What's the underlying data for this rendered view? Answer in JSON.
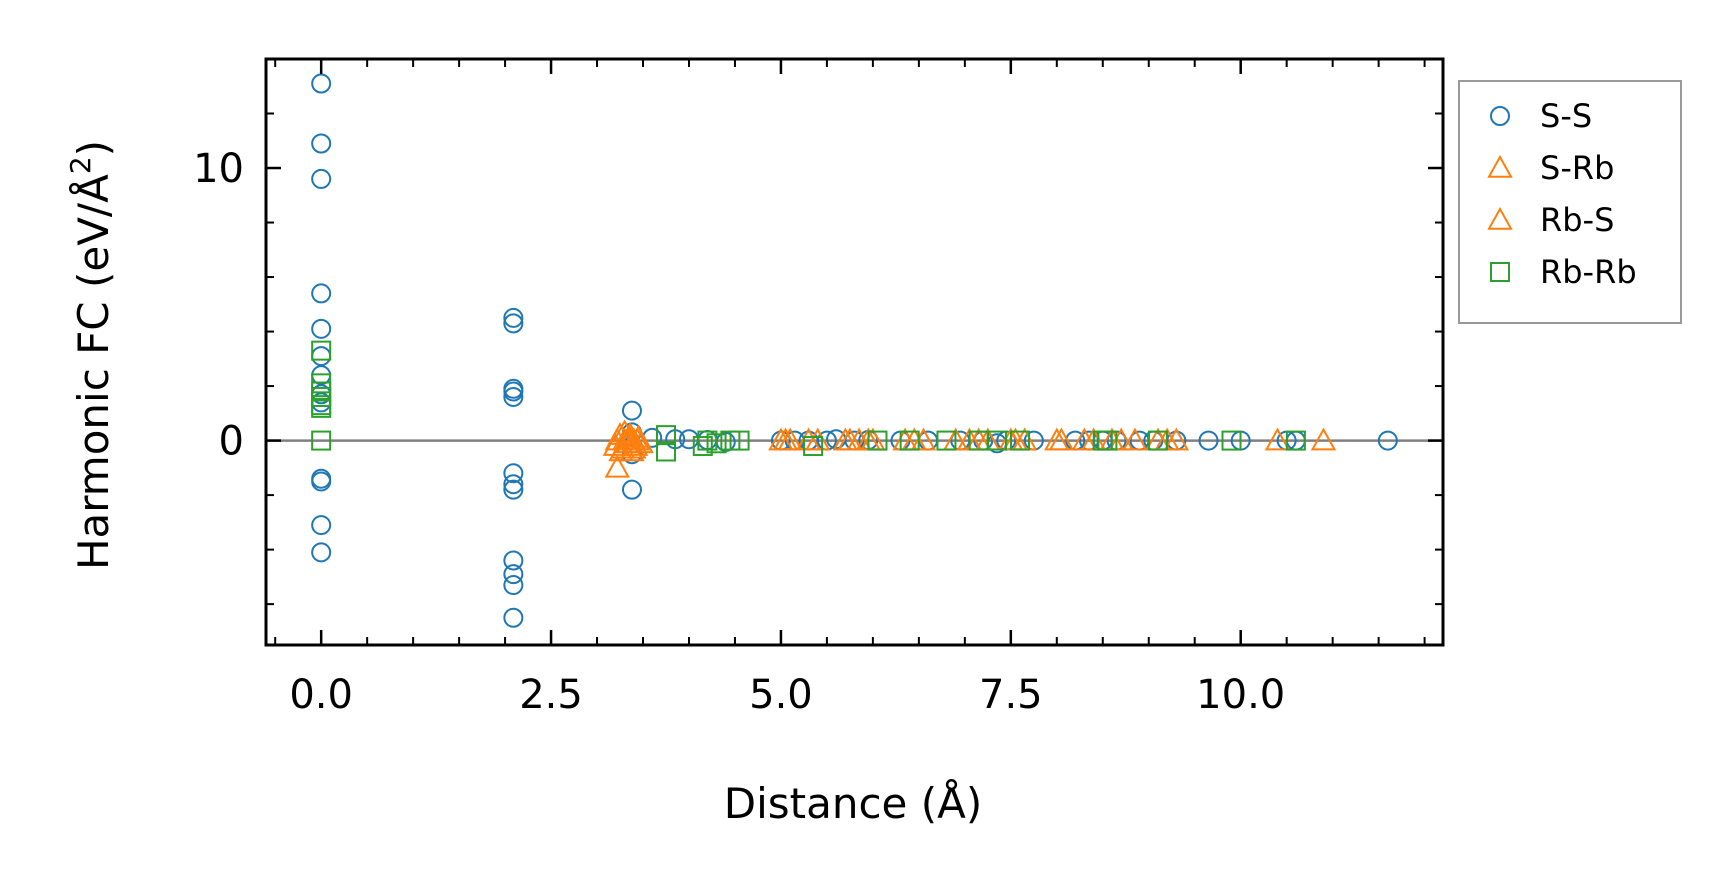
{
  "chart_data": {
    "type": "scatter",
    "title": "",
    "xlabel": "Distance (Å)",
    "ylabel": "Harmonic FC (eV/Å²)",
    "ylabel_main": "Harmonic FC (eV/Å",
    "ylabel_sup": "2",
    "ylabel_close": ")",
    "xlim": [
      -0.6,
      12.2
    ],
    "ylim": [
      -7.5,
      14.0
    ],
    "xticks": [
      0.0,
      2.5,
      5.0,
      7.5,
      10.0
    ],
    "xtick_labels": [
      "0.0",
      "2.5",
      "5.0",
      "7.5",
      "10.0"
    ],
    "yticks": [
      0,
      10
    ],
    "ytick_labels": [
      "0",
      "10"
    ],
    "x_minor_step": 0.5,
    "y_minor_step": 2,
    "zero_line": true,
    "legend": {
      "location": "outside-top-right"
    },
    "series": [
      {
        "name": "S-S",
        "marker": "circle",
        "color": "#1f77b4",
        "points": [
          [
            0.0,
            13.1
          ],
          [
            0.0,
            10.9
          ],
          [
            0.0,
            9.6
          ],
          [
            0.0,
            5.4
          ],
          [
            0.0,
            4.1
          ],
          [
            0.0,
            3.1
          ],
          [
            0.0,
            2.4
          ],
          [
            0.0,
            1.7
          ],
          [
            0.0,
            1.4
          ],
          [
            0.0,
            -1.4
          ],
          [
            0.0,
            -1.5
          ],
          [
            0.0,
            -3.1
          ],
          [
            0.0,
            -4.1
          ],
          [
            2.09,
            4.5
          ],
          [
            2.09,
            4.3
          ],
          [
            2.09,
            1.9
          ],
          [
            2.09,
            1.8
          ],
          [
            2.09,
            1.6
          ],
          [
            2.09,
            -1.2
          ],
          [
            2.09,
            -1.6
          ],
          [
            2.09,
            -1.8
          ],
          [
            2.09,
            -4.4
          ],
          [
            2.09,
            -4.9
          ],
          [
            2.09,
            -5.3
          ],
          [
            2.09,
            -6.5
          ],
          [
            3.38,
            1.1
          ],
          [
            3.38,
            0.3
          ],
          [
            3.38,
            -0.5
          ],
          [
            3.38,
            -1.8
          ],
          [
            3.6,
            0.1
          ],
          [
            3.85,
            0.05
          ],
          [
            4.0,
            0.05
          ],
          [
            4.2,
            0.02
          ],
          [
            4.4,
            -0.05
          ],
          [
            5.0,
            0.0
          ],
          [
            5.15,
            0.0
          ],
          [
            5.3,
            0.0
          ],
          [
            5.5,
            0.0
          ],
          [
            5.6,
            0.05
          ],
          [
            5.8,
            0.0
          ],
          [
            5.95,
            0.02
          ],
          [
            6.3,
            0.0
          ],
          [
            6.6,
            0.0
          ],
          [
            6.95,
            0.0
          ],
          [
            7.2,
            0.0
          ],
          [
            7.35,
            -0.1
          ],
          [
            7.45,
            0.0
          ],
          [
            7.75,
            0.0
          ],
          [
            8.2,
            0.0
          ],
          [
            8.35,
            0.0
          ],
          [
            8.5,
            0.0
          ],
          [
            8.65,
            0.0
          ],
          [
            8.9,
            0.0
          ],
          [
            9.05,
            0.0
          ],
          [
            9.3,
            0.0
          ],
          [
            9.65,
            0.0
          ],
          [
            10.0,
            0.0
          ],
          [
            10.5,
            0.0
          ],
          [
            10.6,
            0.0
          ],
          [
            11.6,
            0.0
          ]
        ]
      },
      {
        "name": "S-Rb",
        "marker": "triangle",
        "color": "#ff7f0e",
        "points": [
          [
            3.2,
            -0.2
          ],
          [
            3.22,
            0.0
          ],
          [
            3.25,
            0.2
          ],
          [
            3.28,
            -0.3
          ],
          [
            3.3,
            0.3
          ],
          [
            3.32,
            -0.1
          ],
          [
            3.35,
            0.1
          ],
          [
            3.38,
            -0.4
          ],
          [
            3.4,
            0.0
          ],
          [
            3.42,
            -0.2
          ],
          [
            3.45,
            0.1
          ],
          [
            5.0,
            0.0
          ],
          [
            5.1,
            0.0
          ],
          [
            5.4,
            0.0
          ],
          [
            5.75,
            0.0
          ],
          [
            5.85,
            0.0
          ],
          [
            6.0,
            0.0
          ],
          [
            6.35,
            0.0
          ],
          [
            6.55,
            0.0
          ],
          [
            7.05,
            0.0
          ],
          [
            7.25,
            0.0
          ],
          [
            7.5,
            0.0
          ],
          [
            7.65,
            0.0
          ],
          [
            8.0,
            0.0
          ],
          [
            8.3,
            0.0
          ],
          [
            8.6,
            0.0
          ],
          [
            8.85,
            0.0
          ],
          [
            9.3,
            0.0
          ],
          [
            10.4,
            0.0
          ],
          [
            10.9,
            0.0
          ]
        ]
      },
      {
        "name": "Rb-S",
        "marker": "triangle",
        "color": "#ff7f0e",
        "points": [
          [
            3.22,
            -1.0
          ],
          [
            3.26,
            -0.4
          ],
          [
            3.3,
            0.0
          ],
          [
            3.34,
            -0.1
          ],
          [
            3.36,
            0.2
          ],
          [
            3.4,
            -0.3
          ],
          [
            3.44,
            0.0
          ],
          [
            3.48,
            -0.1
          ],
          [
            5.05,
            0.0
          ],
          [
            5.3,
            0.0
          ],
          [
            5.7,
            0.0
          ],
          [
            5.95,
            0.0
          ],
          [
            6.45,
            0.0
          ],
          [
            6.9,
            0.0
          ],
          [
            7.15,
            0.0
          ],
          [
            7.55,
            0.0
          ],
          [
            8.05,
            0.0
          ],
          [
            8.4,
            0.0
          ],
          [
            8.7,
            0.0
          ],
          [
            9.1,
            0.0
          ],
          [
            9.2,
            0.0
          ]
        ]
      },
      {
        "name": "Rb-Rb",
        "marker": "square",
        "color": "#2ca02c",
        "points": [
          [
            0.0,
            3.3
          ],
          [
            0.0,
            2.1
          ],
          [
            0.0,
            1.8
          ],
          [
            0.0,
            1.6
          ],
          [
            0.0,
            1.3
          ],
          [
            0.0,
            1.2
          ],
          [
            0.0,
            0.0
          ],
          [
            3.75,
            0.2
          ],
          [
            3.75,
            -0.4
          ],
          [
            4.15,
            -0.2
          ],
          [
            4.2,
            0.0
          ],
          [
            4.3,
            -0.1
          ],
          [
            4.45,
            0.0
          ],
          [
            4.55,
            0.0
          ],
          [
            5.35,
            -0.2
          ],
          [
            6.05,
            0.0
          ],
          [
            6.4,
            0.0
          ],
          [
            6.8,
            0.0
          ],
          [
            7.15,
            0.0
          ],
          [
            7.35,
            0.0
          ],
          [
            7.6,
            0.0
          ],
          [
            8.5,
            0.0
          ],
          [
            8.55,
            0.0
          ],
          [
            9.1,
            0.0
          ],
          [
            9.9,
            0.0
          ],
          [
            10.6,
            0.0
          ]
        ]
      }
    ]
  }
}
